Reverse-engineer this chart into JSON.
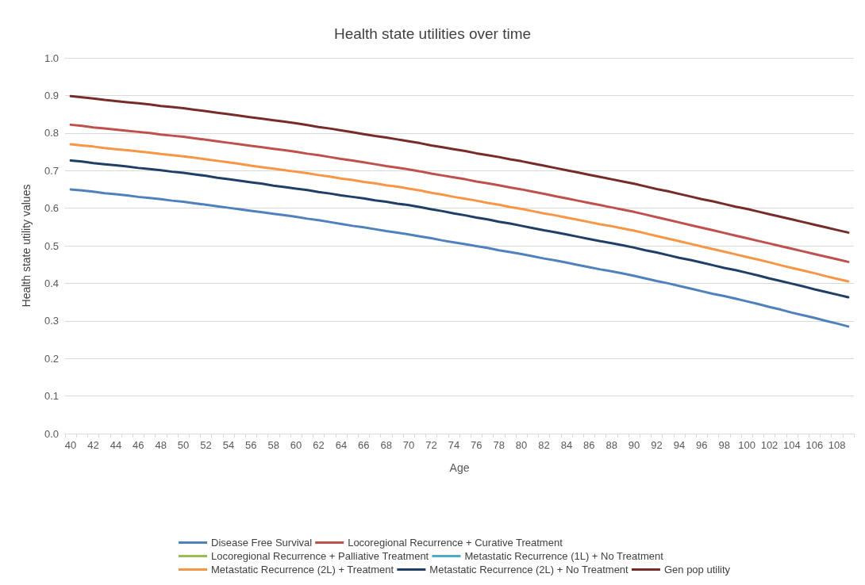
{
  "chart_data": {
    "type": "line",
    "title": "Health state utilities over time",
    "xlabel": "Age",
    "ylabel": "Health state utility values",
    "categories": [
      "40",
      null,
      "42",
      null,
      "44",
      null,
      "46",
      null,
      "48",
      null,
      "50",
      null,
      "52",
      null,
      "54",
      null,
      "56",
      null,
      "58",
      null,
      "60",
      null,
      "62",
      null,
      "64",
      null,
      "66",
      null,
      "68",
      null,
      "70",
      null,
      "72",
      null,
      "74",
      null,
      "76",
      null,
      "78",
      null,
      "80",
      null,
      "82",
      null,
      "84",
      null,
      "86",
      null,
      "88",
      null,
      "90",
      null,
      "92",
      null,
      "94",
      null,
      "96",
      null,
      "98",
      null,
      "100",
      null,
      "102",
      null,
      "104",
      null,
      "106",
      null,
      "108",
      null
    ],
    "ylim": [
      0,
      1
    ],
    "yticks": [
      {
        "value": 0,
        "label": "0.0"
      },
      0.1,
      0.2,
      0.3,
      0.4,
      0.5,
      0.6,
      0.7,
      0.8,
      0.9,
      {
        "value": 1,
        "label": "1.0"
      }
    ],
    "grid": "y",
    "legend": "bottom",
    "marker": "none",
    "line_style": "solid",
    "series": [
      {
        "name": "Disease Free Survival",
        "color": "#4f81bd",
        "values": [
          0.65,
          0.647,
          0.644,
          0.64,
          0.637,
          0.634,
          0.63,
          0.627,
          0.624,
          0.62,
          0.617,
          0.613,
          0.609,
          0.605,
          0.601,
          0.597,
          0.593,
          0.589,
          0.585,
          0.581,
          0.577,
          0.572,
          0.568,
          0.563,
          0.558,
          0.553,
          0.549,
          0.544,
          0.539,
          0.535,
          0.53,
          0.525,
          0.52,
          0.514,
          0.509,
          0.504,
          0.499,
          0.494,
          0.488,
          0.483,
          0.478,
          0.472,
          0.466,
          0.461,
          0.455,
          0.449,
          0.443,
          0.437,
          0.432,
          0.426,
          0.42,
          0.413,
          0.406,
          0.4,
          0.393,
          0.386,
          0.379,
          0.372,
          0.366,
          0.359,
          0.352,
          0.345,
          0.337,
          0.33,
          0.322,
          0.315,
          0.308,
          0.3,
          0.293,
          0.285
        ]
      },
      {
        "name": "Locoregional Recurrence + Curative Treatment",
        "color": "#c0504d",
        "values": [
          0.822,
          0.819,
          0.815,
          0.812,
          0.809,
          0.806,
          0.803,
          0.8,
          0.796,
          0.793,
          0.79,
          0.786,
          0.782,
          0.778,
          0.774,
          0.77,
          0.766,
          0.762,
          0.758,
          0.754,
          0.75,
          0.745,
          0.741,
          0.736,
          0.731,
          0.727,
          0.722,
          0.717,
          0.712,
          0.708,
          0.703,
          0.698,
          0.692,
          0.687,
          0.682,
          0.677,
          0.671,
          0.666,
          0.661,
          0.655,
          0.65,
          0.644,
          0.638,
          0.632,
          0.626,
          0.62,
          0.614,
          0.608,
          0.602,
          0.596,
          0.59,
          0.583,
          0.576,
          0.569,
          0.562,
          0.555,
          0.548,
          0.541,
          0.534,
          0.527,
          0.52,
          0.513,
          0.506,
          0.499,
          0.492,
          0.485,
          0.478,
          0.471,
          0.464,
          0.457
        ]
      },
      {
        "name": "Locoregional Recurrence + Palliative Treatment",
        "color": "#9bbb59",
        "values": [
          null,
          null,
          null,
          null,
          null,
          null,
          null,
          null,
          null,
          null,
          null,
          null,
          null,
          null,
          null,
          null,
          null,
          null,
          null,
          null,
          null,
          null,
          null,
          null,
          null,
          null,
          null,
          null,
          null,
          null,
          null,
          null,
          null,
          null,
          null,
          null,
          null,
          null,
          null,
          null,
          null,
          null,
          null,
          null,
          null,
          null,
          null,
          null,
          null,
          null,
          null,
          null,
          null,
          null,
          null,
          null,
          null,
          null,
          null,
          null,
          null,
          null,
          null,
          null,
          null,
          null,
          null,
          null,
          null,
          null
        ]
      },
      {
        "name": "Metastatic Recurrence (1L) + No Treatment",
        "color": "#4bacc6",
        "values": [
          null,
          null,
          null,
          null,
          null,
          null,
          null,
          null,
          null,
          null,
          null,
          null,
          null,
          null,
          null,
          null,
          null,
          null,
          null,
          null,
          null,
          null,
          null,
          null,
          null,
          null,
          null,
          null,
          null,
          null,
          null,
          null,
          null,
          null,
          null,
          null,
          null,
          null,
          null,
          null,
          null,
          null,
          null,
          null,
          null,
          null,
          null,
          null,
          null,
          null,
          null,
          null,
          null,
          null,
          null,
          null,
          null,
          null,
          null,
          null,
          null,
          null,
          null,
          null,
          null,
          null,
          null,
          null,
          null,
          null
        ]
      },
      {
        "name": "Metastatic Recurrence (2L) + Treatment",
        "color": "#f79646",
        "values": [
          0.77,
          0.767,
          0.764,
          0.76,
          0.757,
          0.754,
          0.751,
          0.748,
          0.744,
          0.741,
          0.738,
          0.734,
          0.73,
          0.726,
          0.722,
          0.718,
          0.713,
          0.709,
          0.705,
          0.701,
          0.697,
          0.693,
          0.688,
          0.684,
          0.679,
          0.675,
          0.67,
          0.666,
          0.661,
          0.657,
          0.652,
          0.647,
          0.641,
          0.636,
          0.63,
          0.625,
          0.62,
          0.614,
          0.609,
          0.603,
          0.598,
          0.592,
          0.586,
          0.581,
          0.575,
          0.569,
          0.563,
          0.557,
          0.552,
          0.546,
          0.54,
          0.533,
          0.526,
          0.519,
          0.512,
          0.505,
          0.498,
          0.491,
          0.484,
          0.477,
          0.47,
          0.463,
          0.456,
          0.448,
          0.441,
          0.434,
          0.427,
          0.419,
          0.412,
          0.405
        ]
      },
      {
        "name": "Metastatic Recurrence (2L) + No Treatment",
        "color": "#1f3f66",
        "values": [
          0.727,
          0.724,
          0.72,
          0.717,
          0.714,
          0.711,
          0.707,
          0.704,
          0.701,
          0.697,
          0.694,
          0.69,
          0.686,
          0.681,
          0.677,
          0.673,
          0.669,
          0.665,
          0.66,
          0.656,
          0.652,
          0.648,
          0.643,
          0.639,
          0.634,
          0.63,
          0.626,
          0.621,
          0.617,
          0.612,
          0.608,
          0.603,
          0.597,
          0.592,
          0.586,
          0.581,
          0.575,
          0.57,
          0.564,
          0.559,
          0.553,
          0.547,
          0.541,
          0.536,
          0.53,
          0.524,
          0.518,
          0.512,
          0.507,
          0.501,
          0.495,
          0.488,
          0.482,
          0.475,
          0.468,
          0.462,
          0.455,
          0.448,
          0.441,
          0.435,
          0.428,
          0.421,
          0.413,
          0.406,
          0.399,
          0.392,
          0.384,
          0.377,
          0.37,
          0.363
        ]
      },
      {
        "name": "Gen pop utility",
        "color": "#772c2a",
        "values": [
          0.898,
          0.895,
          0.892,
          0.888,
          0.885,
          0.882,
          0.879,
          0.876,
          0.872,
          0.869,
          0.866,
          0.862,
          0.858,
          0.854,
          0.85,
          0.846,
          0.842,
          0.838,
          0.834,
          0.83,
          0.826,
          0.821,
          0.816,
          0.812,
          0.807,
          0.802,
          0.797,
          0.792,
          0.788,
          0.783,
          0.778,
          0.773,
          0.767,
          0.762,
          0.757,
          0.752,
          0.746,
          0.741,
          0.736,
          0.73,
          0.725,
          0.719,
          0.713,
          0.707,
          0.701,
          0.695,
          0.689,
          0.683,
          0.677,
          0.671,
          0.665,
          0.658,
          0.651,
          0.645,
          0.638,
          0.631,
          0.624,
          0.618,
          0.611,
          0.604,
          0.598,
          0.591,
          0.584,
          0.577,
          0.57,
          0.563,
          0.556,
          0.549,
          0.542,
          0.535
        ]
      }
    ]
  }
}
